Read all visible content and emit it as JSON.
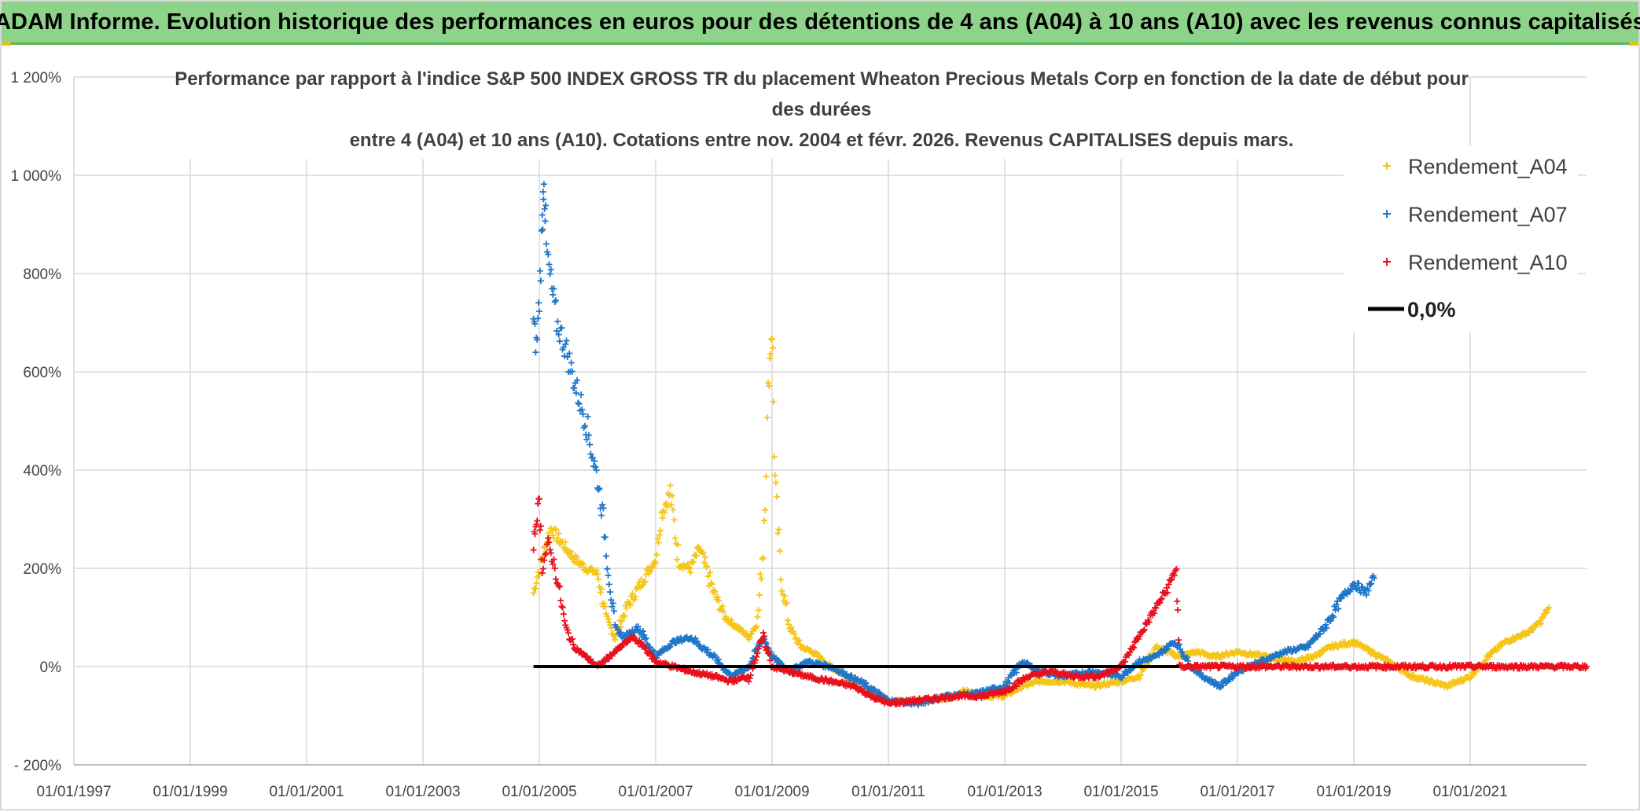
{
  "header": {
    "title": "ADAM Informe. Evolution historique des performances en euros pour des détentions de 4 ans (A04) à 10 ans (A10) avec les revenus connus capitalisés"
  },
  "colors": {
    "a04": "#f5c518",
    "a07": "#1f77c9",
    "a10": "#e8111c",
    "zero": "#000000",
    "grid": "#d9d9d9"
  },
  "chart_data": {
    "type": "scatter",
    "title_lines": [
      "Performance par rapport à l'indice S&P 500 INDEX GROSS TR  du placement Wheaton Precious Metals Corp en fonction de la date de début pour",
      "des durées",
      "entre 4 (A04) et 10 ans (A10). Cotations entre nov. 2004 et févr. 2026. Revenus CAPITALISES depuis mars."
    ],
    "xlabel": "",
    "ylabel": "",
    "xlim": [
      1997.0,
      2023.0
    ],
    "ylim": [
      -200,
      1200
    ],
    "x_ticks": [
      {
        "v": 1997,
        "label": "01/01/1997"
      },
      {
        "v": 1999,
        "label": "01/01/1999"
      },
      {
        "v": 2001,
        "label": "01/01/2001"
      },
      {
        "v": 2003,
        "label": "01/01/2003"
      },
      {
        "v": 2005,
        "label": "01/01/2005"
      },
      {
        "v": 2007,
        "label": "01/01/2007"
      },
      {
        "v": 2009,
        "label": "01/01/2009"
      },
      {
        "v": 2011,
        "label": "01/01/2011"
      },
      {
        "v": 2013,
        "label": "01/01/2013"
      },
      {
        "v": 2015,
        "label": "01/01/2015"
      },
      {
        "v": 2017,
        "label": "01/01/2017"
      },
      {
        "v": 2019,
        "label": "01/01/2019"
      },
      {
        "v": 2021,
        "label": "01/01/2021"
      }
    ],
    "y_ticks": [
      {
        "v": -200,
        "label": "- 200%"
      },
      {
        "v": 0,
        "label": "0%"
      },
      {
        "v": 200,
        "label": "200%"
      },
      {
        "v": 400,
        "label": "400%"
      },
      {
        "v": 600,
        "label": "600%"
      },
      {
        "v": 800,
        "label": "800%"
      },
      {
        "v": 1000,
        "label": "1 000%"
      },
      {
        "v": 1200,
        "label": "1 200%"
      }
    ],
    "legend": {
      "position": "top-right",
      "items": [
        {
          "key": "a04",
          "label": "Rendement_A04",
          "marker": "+"
        },
        {
          "key": "a07",
          "label": "Rendement_A07",
          "marker": "+"
        },
        {
          "key": "a10",
          "label": "Rendement_A10",
          "marker": "+"
        },
        {
          "key": "zero",
          "label": "0,0%",
          "marker": "line"
        }
      ]
    },
    "series": [
      {
        "name": "Rendement_A04",
        "key": "a04",
        "points": [
          [
            2004.9,
            150
          ],
          [
            2005.0,
            200
          ],
          [
            2005.2,
            280
          ],
          [
            2005.4,
            250
          ],
          [
            2005.6,
            220
          ],
          [
            2005.8,
            200
          ],
          [
            2006.0,
            190
          ],
          [
            2006.15,
            100
          ],
          [
            2006.3,
            60
          ],
          [
            2006.5,
            120
          ],
          [
            2006.8,
            180
          ],
          [
            2007.0,
            220
          ],
          [
            2007.1,
            310
          ],
          [
            2007.25,
            355
          ],
          [
            2007.4,
            210
          ],
          [
            2007.6,
            200
          ],
          [
            2007.75,
            240
          ],
          [
            2008.0,
            150
          ],
          [
            2008.2,
            100
          ],
          [
            2008.4,
            80
          ],
          [
            2008.6,
            60
          ],
          [
            2008.75,
            90
          ],
          [
            2008.85,
            250
          ],
          [
            2008.95,
            600
          ],
          [
            2009.0,
            700
          ],
          [
            2009.05,
            380
          ],
          [
            2009.15,
            180
          ],
          [
            2009.3,
            80
          ],
          [
            2009.5,
            40
          ],
          [
            2009.7,
            30
          ],
          [
            2010.0,
            0
          ],
          [
            2010.3,
            -20
          ],
          [
            2010.6,
            -40
          ],
          [
            2011.0,
            -70
          ],
          [
            2011.5,
            -70
          ],
          [
            2012.0,
            -65
          ],
          [
            2012.3,
            -50
          ],
          [
            2012.7,
            -60
          ],
          [
            2013.0,
            -60
          ],
          [
            2013.3,
            -40
          ],
          [
            2013.6,
            -30
          ],
          [
            2014.0,
            -30
          ],
          [
            2014.5,
            -40
          ],
          [
            2015.0,
            -30
          ],
          [
            2015.3,
            -20
          ],
          [
            2015.6,
            40
          ],
          [
            2016.0,
            20
          ],
          [
            2016.3,
            30
          ],
          [
            2016.6,
            20
          ],
          [
            2017.0,
            30
          ],
          [
            2017.5,
            20
          ],
          [
            2018.0,
            10
          ],
          [
            2018.3,
            20
          ],
          [
            2018.6,
            40
          ],
          [
            2019.0,
            50
          ],
          [
            2019.3,
            30
          ],
          [
            2019.6,
            10
          ],
          [
            2020.0,
            -20
          ],
          [
            2020.3,
            -30
          ],
          [
            2020.6,
            -40
          ],
          [
            2021.0,
            -20
          ],
          [
            2021.3,
            20
          ],
          [
            2021.6,
            50
          ],
          [
            2022.0,
            70
          ],
          [
            2022.2,
            90
          ],
          [
            2022.35,
            120
          ]
        ]
      },
      {
        "name": "Rendement_A07",
        "key": "a07",
        "points": [
          [
            2004.9,
            700
          ],
          [
            2004.95,
            650
          ],
          [
            2005.0,
            750
          ],
          [
            2005.05,
            900
          ],
          [
            2005.08,
            1010
          ],
          [
            2005.12,
            850
          ],
          [
            2005.2,
            780
          ],
          [
            2005.3,
            700
          ],
          [
            2005.45,
            650
          ],
          [
            2005.6,
            580
          ],
          [
            2005.8,
            500
          ],
          [
            2006.0,
            380
          ],
          [
            2006.1,
            300
          ],
          [
            2006.2,
            180
          ],
          [
            2006.3,
            80
          ],
          [
            2006.45,
            60
          ],
          [
            2006.7,
            80
          ],
          [
            2007.0,
            20
          ],
          [
            2007.3,
            50
          ],
          [
            2007.6,
            60
          ],
          [
            2008.0,
            20
          ],
          [
            2008.3,
            -20
          ],
          [
            2008.6,
            0
          ],
          [
            2008.85,
            60
          ],
          [
            2009.0,
            20
          ],
          [
            2009.3,
            -10
          ],
          [
            2009.6,
            10
          ],
          [
            2010.0,
            0
          ],
          [
            2010.5,
            -30
          ],
          [
            2011.0,
            -70
          ],
          [
            2011.5,
            -75
          ],
          [
            2012.0,
            -60
          ],
          [
            2012.5,
            -55
          ],
          [
            2013.0,
            -40
          ],
          [
            2013.3,
            10
          ],
          [
            2013.6,
            -10
          ],
          [
            2014.0,
            -20
          ],
          [
            2014.5,
            -10
          ],
          [
            2015.0,
            -20
          ],
          [
            2015.3,
            10
          ],
          [
            2015.6,
            20
          ],
          [
            2015.9,
            50
          ],
          [
            2016.0,
            40
          ],
          [
            2016.2,
            0
          ],
          [
            2016.4,
            -20
          ],
          [
            2016.7,
            -40
          ],
          [
            2017.0,
            -10
          ],
          [
            2017.4,
            10
          ],
          [
            2017.8,
            30
          ],
          [
            2018.2,
            40
          ],
          [
            2018.5,
            80
          ],
          [
            2018.8,
            140
          ],
          [
            2019.0,
            170
          ],
          [
            2019.2,
            150
          ],
          [
            2019.35,
            180
          ]
        ]
      },
      {
        "name": "Rendement_A10",
        "key": "a10",
        "points": [
          [
            2004.9,
            250
          ],
          [
            2004.95,
            300
          ],
          [
            2005.0,
            340
          ],
          [
            2005.05,
            200
          ],
          [
            2005.15,
            250
          ],
          [
            2005.25,
            210
          ],
          [
            2005.35,
            150
          ],
          [
            2005.45,
            80
          ],
          [
            2005.6,
            40
          ],
          [
            2005.8,
            20
          ],
          [
            2006.0,
            0
          ],
          [
            2006.2,
            20
          ],
          [
            2006.4,
            40
          ],
          [
            2006.6,
            60
          ],
          [
            2006.8,
            40
          ],
          [
            2007.0,
            10
          ],
          [
            2007.3,
            0
          ],
          [
            2007.6,
            -10
          ],
          [
            2008.0,
            -20
          ],
          [
            2008.3,
            -30
          ],
          [
            2008.6,
            -20
          ],
          [
            2008.85,
            60
          ],
          [
            2009.0,
            0
          ],
          [
            2009.3,
            -10
          ],
          [
            2009.6,
            -20
          ],
          [
            2010.0,
            -30
          ],
          [
            2010.4,
            -40
          ],
          [
            2010.7,
            -60
          ],
          [
            2011.0,
            -75
          ],
          [
            2011.4,
            -70
          ],
          [
            2011.8,
            -65
          ],
          [
            2012.2,
            -60
          ],
          [
            2012.6,
            -60
          ],
          [
            2013.0,
            -50
          ],
          [
            2013.4,
            -20
          ],
          [
            2013.8,
            -10
          ],
          [
            2014.2,
            -20
          ],
          [
            2014.6,
            -20
          ],
          [
            2015.0,
            0
          ],
          [
            2015.2,
            40
          ],
          [
            2015.4,
            80
          ],
          [
            2015.6,
            120
          ],
          [
            2015.8,
            160
          ],
          [
            2015.95,
            200
          ],
          [
            2016.0,
            0
          ],
          [
            2016.5,
            0
          ],
          [
            2017.0,
            0
          ],
          [
            2017.5,
            0
          ],
          [
            2018.0,
            0
          ],
          [
            2018.5,
            0
          ],
          [
            2019.0,
            0
          ],
          [
            2019.5,
            0
          ],
          [
            2020.0,
            0
          ],
          [
            2020.5,
            0
          ],
          [
            2021.0,
            0
          ],
          [
            2021.5,
            0
          ],
          [
            2022.0,
            0
          ],
          [
            2022.5,
            0
          ],
          [
            2023.0,
            0
          ]
        ]
      }
    ],
    "reference_line": {
      "label": "0,0%",
      "y": 0,
      "x_start": 2004.9,
      "x_end": 2016.0
    }
  }
}
